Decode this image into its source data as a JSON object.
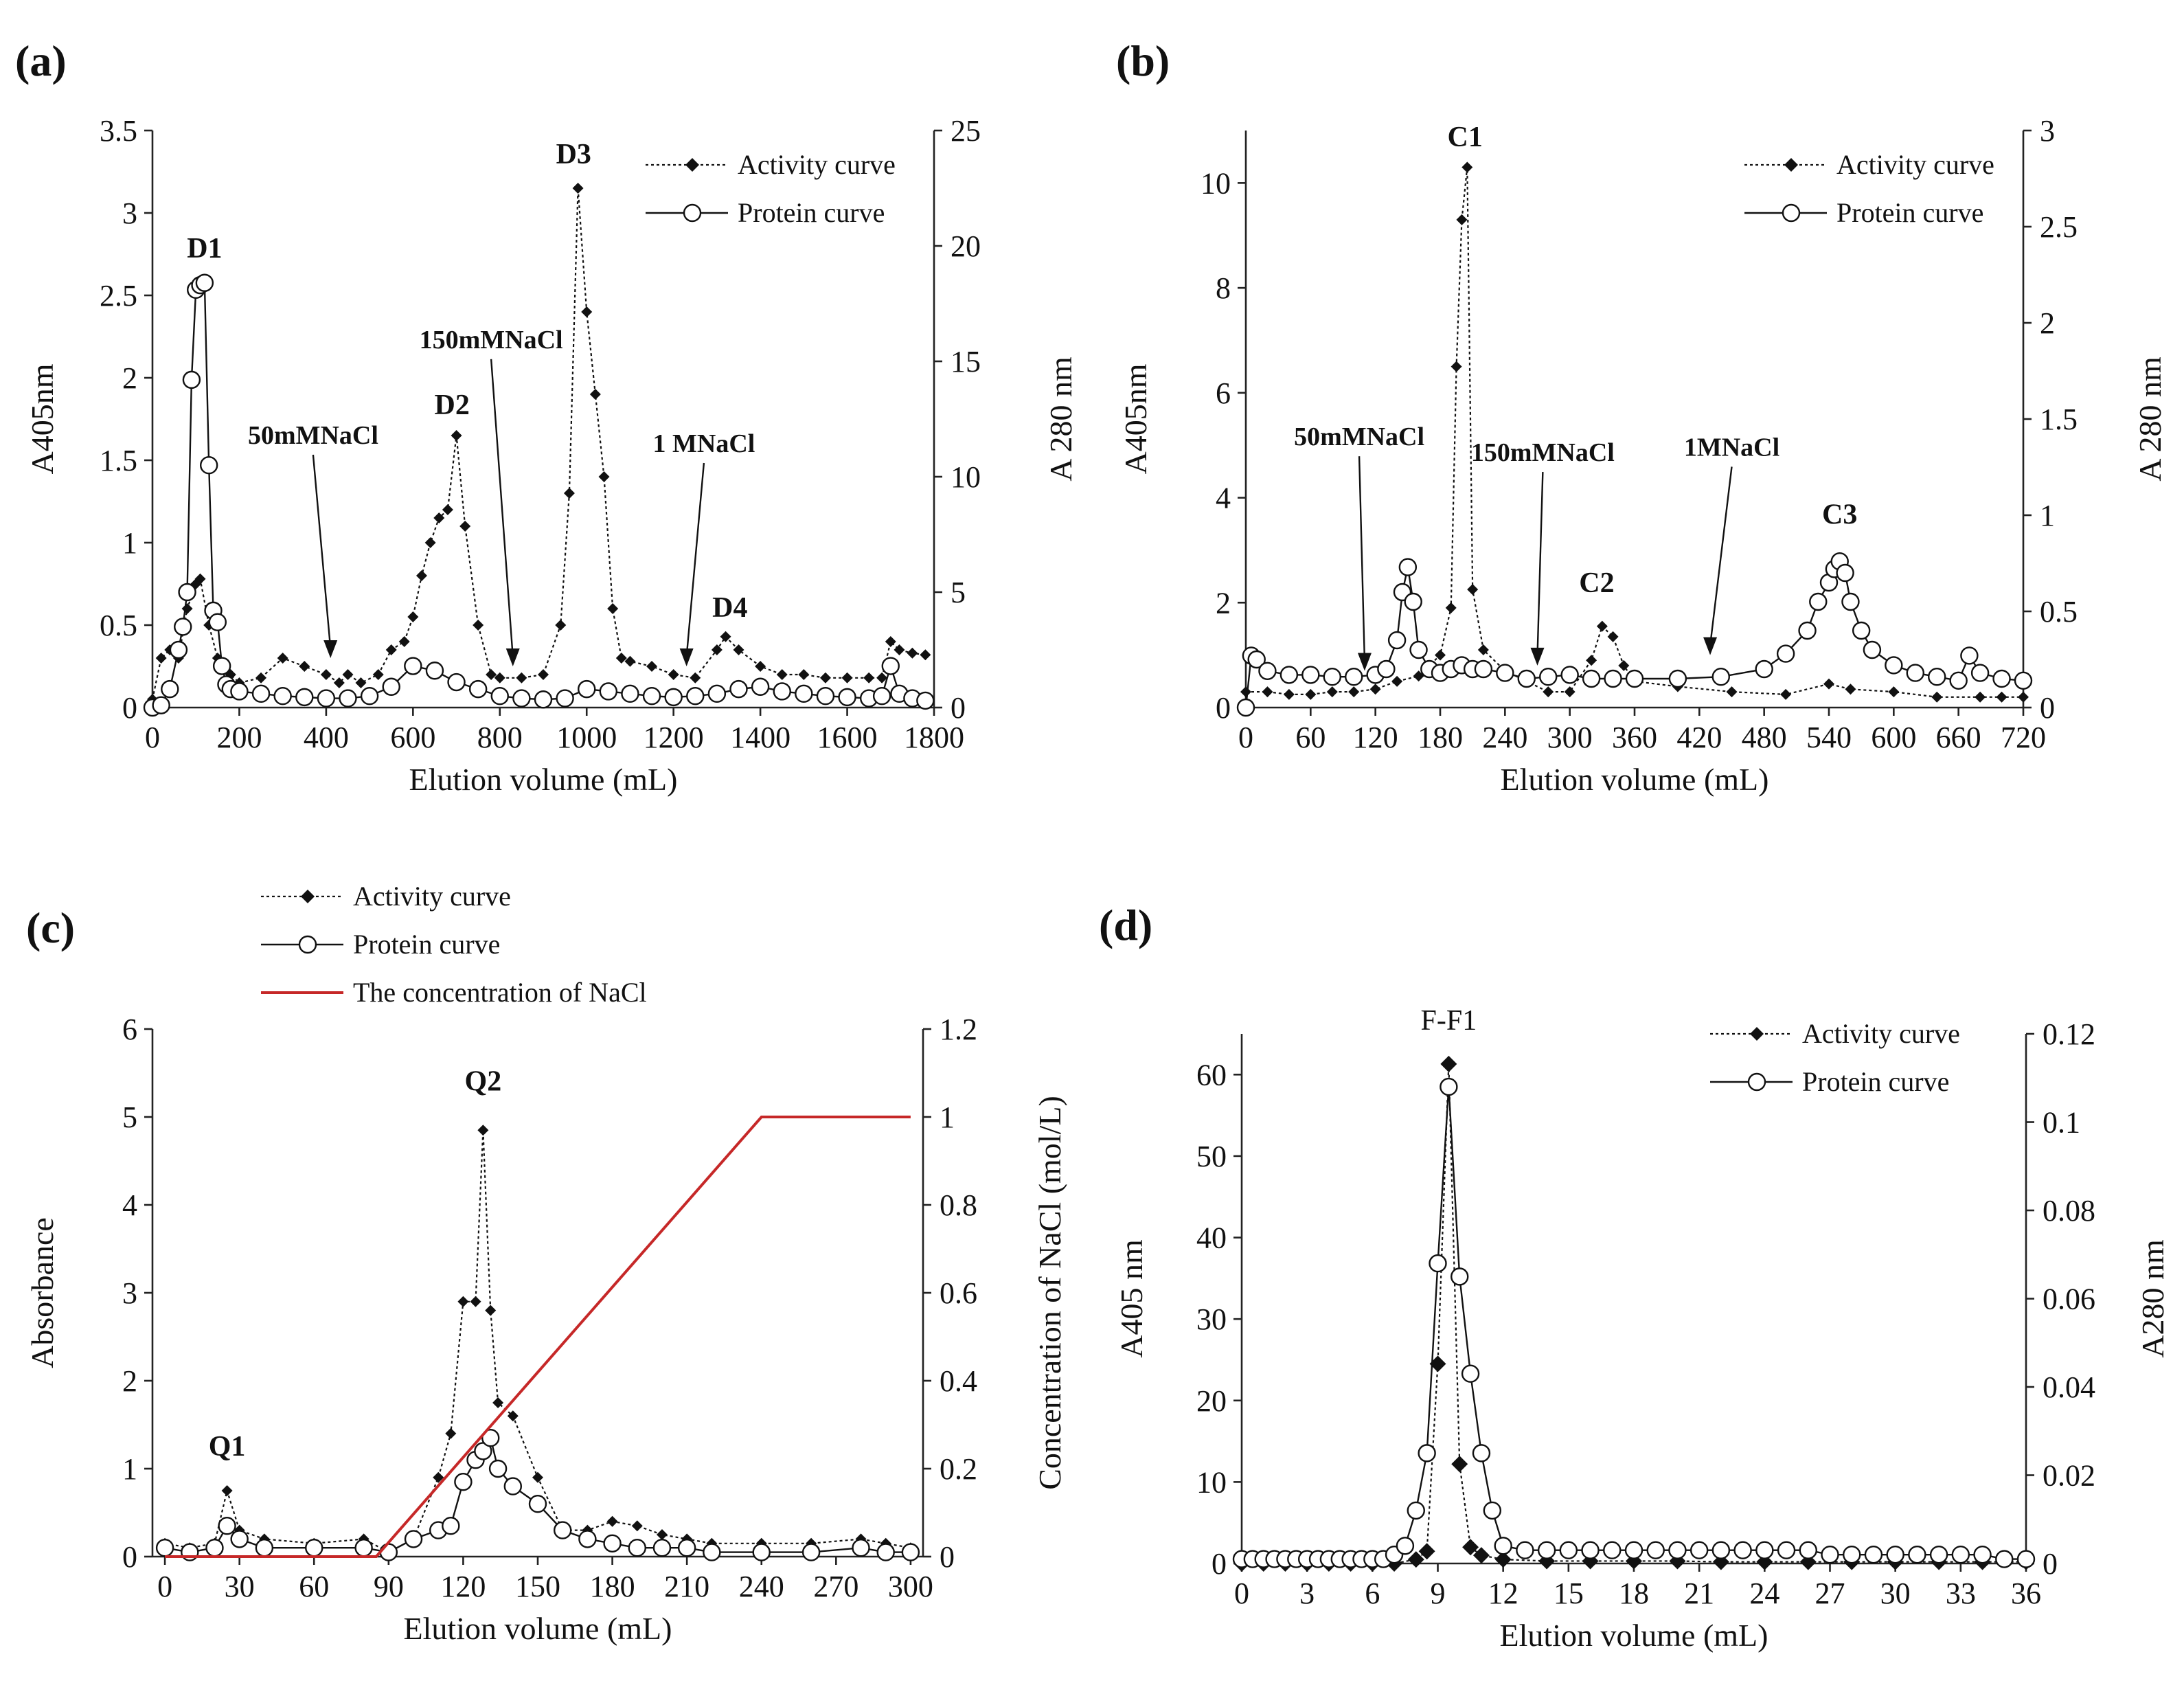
{
  "colors": {
    "activity": "#111111",
    "protein": "#111111",
    "nacl": "#c62828"
  },
  "chart_data": [
    {
      "panel_label": "(a)",
      "type": "line",
      "xlabel": "Elution volume (mL)",
      "ylabel": "A405nm",
      "y2label": "A 280 nm",
      "xlim": [
        0,
        1800
      ],
      "xticks": [
        0,
        200,
        400,
        600,
        800,
        1000,
        1200,
        1400,
        1600,
        1800
      ],
      "ylim": [
        0,
        3.5
      ],
      "yticks": [
        0,
        0.5,
        1,
        1.5,
        2,
        2.5,
        3,
        3.5
      ],
      "y2lim": [
        0,
        25
      ],
      "y2ticks": [
        0,
        5,
        10,
        15,
        20,
        25
      ],
      "legend": [
        "Activity curve",
        "Protein curve"
      ],
      "legend_position": "top-right",
      "series": [
        {
          "name": "Activity curve",
          "axis": "y",
          "marker": "diamond",
          "x": [
            0,
            20,
            40,
            60,
            80,
            100,
            110,
            130,
            150,
            180,
            200,
            250,
            300,
            350,
            400,
            430,
            450,
            480,
            520,
            550,
            580,
            600,
            620,
            640,
            660,
            680,
            700,
            720,
            750,
            780,
            800,
            850,
            900,
            940,
            960,
            980,
            1000,
            1020,
            1040,
            1060,
            1080,
            1100,
            1150,
            1200,
            1250,
            1300,
            1320,
            1350,
            1400,
            1450,
            1500,
            1550,
            1600,
            1650,
            1680,
            1700,
            1720,
            1750,
            1780
          ],
          "y": [
            0.05,
            0.3,
            0.35,
            0.3,
            0.6,
            0.75,
            0.78,
            0.5,
            0.3,
            0.2,
            0.15,
            0.18,
            0.3,
            0.25,
            0.2,
            0.15,
            0.2,
            0.15,
            0.2,
            0.35,
            0.4,
            0.55,
            0.8,
            1.0,
            1.15,
            1.2,
            1.65,
            1.1,
            0.5,
            0.2,
            0.18,
            0.18,
            0.2,
            0.5,
            1.3,
            3.15,
            2.4,
            1.9,
            1.4,
            0.6,
            0.3,
            0.28,
            0.25,
            0.2,
            0.18,
            0.35,
            0.43,
            0.35,
            0.25,
            0.2,
            0.2,
            0.18,
            0.18,
            0.18,
            0.18,
            0.4,
            0.35,
            0.33,
            0.32
          ]
        },
        {
          "name": "Protein curve",
          "axis": "y2",
          "marker": "circle",
          "x": [
            0,
            20,
            40,
            60,
            70,
            80,
            90,
            100,
            110,
            120,
            130,
            140,
            150,
            160,
            170,
            180,
            200,
            250,
            300,
            350,
            400,
            450,
            500,
            550,
            600,
            650,
            700,
            750,
            800,
            850,
            900,
            950,
            1000,
            1050,
            1100,
            1150,
            1200,
            1250,
            1300,
            1350,
            1400,
            1450,
            1500,
            1550,
            1600,
            1650,
            1680,
            1700,
            1720,
            1750,
            1780
          ],
          "y": [
            0,
            0.1,
            0.8,
            2.5,
            3.5,
            5.0,
            14.2,
            18.1,
            18.3,
            18.4,
            10.5,
            4.2,
            3.7,
            1.8,
            1.0,
            0.8,
            0.7,
            0.6,
            0.5,
            0.45,
            0.4,
            0.4,
            0.5,
            0.9,
            1.8,
            1.6,
            1.1,
            0.8,
            0.5,
            0.4,
            0.35,
            0.4,
            0.8,
            0.7,
            0.6,
            0.5,
            0.45,
            0.5,
            0.6,
            0.8,
            0.9,
            0.7,
            0.6,
            0.5,
            0.45,
            0.4,
            0.5,
            1.8,
            0.6,
            0.4,
            0.3
          ]
        }
      ],
      "annotations": [
        {
          "text": "D1",
          "x": 120,
          "y": 2.73
        },
        {
          "text": "D2",
          "x": 690,
          "y": 1.78
        },
        {
          "text": "D3",
          "x": 970,
          "y": 3.3
        },
        {
          "text": "D4",
          "x": 1330,
          "y": 0.55
        },
        {
          "text": "50mMNaCl",
          "x": 370,
          "y": 1.6,
          "arrow_to": [
            410,
            0.3
          ]
        },
        {
          "text": "150mMNaCl",
          "x": 780,
          "y": 2.18,
          "arrow_to": [
            830,
            0.25
          ]
        },
        {
          "text": "1 MNaCl",
          "x": 1270,
          "y": 1.55,
          "arrow_to": [
            1230,
            0.25
          ]
        }
      ]
    },
    {
      "panel_label": "(b)",
      "type": "line",
      "xlabel": "Elution volume (mL)",
      "ylabel": "A405nm",
      "y2label": "A 280 nm",
      "xlim": [
        0,
        720
      ],
      "xticks": [
        0,
        60,
        120,
        180,
        240,
        300,
        360,
        420,
        480,
        540,
        600,
        660,
        720
      ],
      "ylim": [
        0,
        11
      ],
      "yticks": [
        0,
        2,
        4,
        6,
        8,
        10
      ],
      "y2lim": [
        0,
        3
      ],
      "y2ticks": [
        0,
        0.5,
        1,
        1.5,
        2,
        2.5,
        3
      ],
      "legend": [
        "Activity curve",
        "Protein curve"
      ],
      "legend_position": "top-right",
      "series": [
        {
          "name": "Activity curve",
          "axis": "y",
          "marker": "diamond",
          "x": [
            0,
            20,
            40,
            60,
            80,
            100,
            120,
            140,
            160,
            180,
            190,
            195,
            200,
            205,
            210,
            220,
            240,
            260,
            280,
            300,
            320,
            330,
            340,
            350,
            360,
            400,
            450,
            500,
            540,
            560,
            600,
            640,
            680,
            700,
            720
          ],
          "y": [
            0.3,
            0.3,
            0.25,
            0.25,
            0.3,
            0.3,
            0.35,
            0.5,
            0.6,
            1.0,
            1.9,
            6.5,
            9.3,
            10.3,
            2.25,
            1.1,
            0.7,
            0.5,
            0.3,
            0.3,
            0.9,
            1.55,
            1.35,
            0.8,
            0.5,
            0.4,
            0.3,
            0.25,
            0.45,
            0.35,
            0.3,
            0.2,
            0.2,
            0.2,
            0.2
          ]
        },
        {
          "name": "Protein curve",
          "axis": "y2",
          "marker": "circle",
          "x": [
            0,
            5,
            10,
            20,
            40,
            60,
            80,
            100,
            120,
            130,
            140,
            145,
            150,
            155,
            160,
            170,
            180,
            190,
            200,
            210,
            220,
            240,
            260,
            280,
            300,
            320,
            340,
            360,
            400,
            440,
            480,
            500,
            520,
            530,
            540,
            545,
            550,
            555,
            560,
            570,
            580,
            600,
            620,
            640,
            660,
            670,
            680,
            700,
            720
          ],
          "y": [
            0,
            0.27,
            0.25,
            0.19,
            0.17,
            0.17,
            0.16,
            0.16,
            0.17,
            0.2,
            0.35,
            0.6,
            0.73,
            0.55,
            0.3,
            0.2,
            0.18,
            0.2,
            0.22,
            0.2,
            0.2,
            0.18,
            0.15,
            0.16,
            0.17,
            0.15,
            0.15,
            0.15,
            0.15,
            0.16,
            0.2,
            0.28,
            0.4,
            0.55,
            0.65,
            0.72,
            0.76,
            0.7,
            0.55,
            0.4,
            0.3,
            0.22,
            0.18,
            0.16,
            0.14,
            0.27,
            0.18,
            0.15,
            0.14
          ]
        }
      ],
      "annotations": [
        {
          "text": "C1",
          "x": 203,
          "y": 10.7
        },
        {
          "text": "C2",
          "x": 325,
          "y": 2.2
        },
        {
          "text": "C3",
          "x": 550,
          "y": 3.5
        },
        {
          "text": "50mMNaCl",
          "x": 105,
          "y": 5.0,
          "arrow_to": [
            110,
            0.7
          ]
        },
        {
          "text": "150mMNaCl",
          "x": 275,
          "y": 4.7,
          "arrow_to": [
            270,
            0.8
          ]
        },
        {
          "text": "1MNaCl",
          "x": 450,
          "y": 4.8,
          "arrow_to": [
            430,
            1.0
          ]
        }
      ]
    },
    {
      "panel_label": "(c)",
      "type": "line",
      "xlabel": "Elution volume (mL)",
      "ylabel": "Absorbance",
      "y2label": "Concentration of NaCl (mol/L)",
      "xlim": [
        -5,
        305
      ],
      "xticks": [
        0,
        30,
        60,
        90,
        120,
        150,
        180,
        210,
        240,
        270,
        300
      ],
      "ylim": [
        0,
        6
      ],
      "yticks": [
        0,
        1,
        2,
        3,
        4,
        5,
        6
      ],
      "y2lim": [
        0,
        1.2
      ],
      "y2ticks": [
        0,
        0.2,
        0.4,
        0.6,
        0.8,
        1,
        1.2
      ],
      "legend": [
        "Activity curve",
        "Protein curve",
        "The concentration of NaCl"
      ],
      "legend_position": "top-left",
      "series": [
        {
          "name": "Activity curve",
          "axis": "y",
          "marker": "diamond",
          "x": [
            0,
            10,
            20,
            25,
            30,
            40,
            60,
            80,
            90,
            100,
            110,
            115,
            120,
            125,
            128,
            131,
            134,
            140,
            150,
            160,
            170,
            180,
            190,
            200,
            210,
            220,
            240,
            260,
            280,
            290,
            300
          ],
          "y": [
            0.15,
            0.1,
            0.15,
            0.75,
            0.3,
            0.2,
            0.15,
            0.2,
            0.05,
            0.2,
            0.9,
            1.4,
            2.9,
            2.9,
            4.85,
            2.8,
            1.75,
            1.6,
            0.9,
            0.3,
            0.3,
            0.4,
            0.35,
            0.25,
            0.2,
            0.15,
            0.15,
            0.15,
            0.2,
            0.15,
            0.1
          ]
        },
        {
          "name": "Protein curve",
          "axis": "y",
          "marker": "circle",
          "x": [
            0,
            10,
            20,
            25,
            30,
            40,
            60,
            80,
            90,
            100,
            110,
            115,
            120,
            125,
            128,
            131,
            134,
            140,
            150,
            160,
            170,
            180,
            190,
            200,
            210,
            220,
            240,
            260,
            280,
            290,
            300
          ],
          "y": [
            0.1,
            0.05,
            0.1,
            0.35,
            0.2,
            0.1,
            0.1,
            0.1,
            0.05,
            0.2,
            0.3,
            0.35,
            0.85,
            1.1,
            1.2,
            1.35,
            1.0,
            0.8,
            0.6,
            0.3,
            0.2,
            0.15,
            0.1,
            0.1,
            0.1,
            0.05,
            0.05,
            0.05,
            0.1,
            0.05,
            0.05
          ]
        },
        {
          "name": "The concentration of NaCl",
          "axis": "y2",
          "marker": "none",
          "x": [
            0,
            85,
            240,
            300
          ],
          "y": [
            0,
            0,
            1,
            1
          ]
        }
      ],
      "annotations": [
        {
          "text": "Q1",
          "x": 25,
          "y": 1.15
        },
        {
          "text": "Q2",
          "x": 128,
          "y": 5.3
        }
      ]
    },
    {
      "panel_label": "(d)",
      "type": "line",
      "xlabel": "Elution volume (mL)",
      "ylabel": "A405 nm",
      "y2label": "A280 nm",
      "xlim": [
        0,
        36
      ],
      "xticks": [
        0,
        3,
        6,
        9,
        12,
        15,
        18,
        21,
        24,
        27,
        30,
        33,
        36
      ],
      "ylim": [
        0,
        65
      ],
      "yticks": [
        0,
        10,
        20,
        30,
        40,
        50,
        60
      ],
      "y2lim": [
        0,
        0.12
      ],
      "y2ticks": [
        0,
        0.02,
        0.04,
        0.06,
        0.08,
        0.1,
        0.12
      ],
      "legend": [
        "Activity curve",
        "Protein curve"
      ],
      "legend_position": "top-right",
      "series": [
        {
          "name": "Activity curve",
          "axis": "y",
          "marker": "diamond",
          "x": [
            0,
            1,
            2,
            3,
            4,
            5,
            6,
            7,
            8,
            8.5,
            9,
            9.5,
            10,
            10.5,
            11,
            12,
            14,
            16,
            18,
            20,
            22,
            24,
            26,
            28,
            30,
            32,
            34,
            36
          ],
          "y": [
            0,
            0,
            0,
            0,
            0,
            0,
            0,
            0,
            0.5,
            1.5,
            24.5,
            61.3,
            12.2,
            2.0,
            1.0,
            0.5,
            0.3,
            0.3,
            0.3,
            0.3,
            0.2,
            0.2,
            0.2,
            0.2,
            0.2,
            0.2,
            0.2,
            0.2
          ]
        },
        {
          "name": "Protein curve",
          "axis": "y2",
          "marker": "circle",
          "x": [
            0,
            0.5,
            1,
            1.5,
            2,
            2.5,
            3,
            3.5,
            4,
            4.5,
            5,
            5.5,
            6,
            6.5,
            7,
            7.5,
            8,
            8.5,
            9,
            9.5,
            10,
            10.5,
            11,
            11.5,
            12,
            13,
            14,
            15,
            16,
            17,
            18,
            19,
            20,
            21,
            22,
            23,
            24,
            25,
            26,
            27,
            28,
            29,
            30,
            31,
            32,
            33,
            34,
            35,
            36
          ],
          "y": [
            0.001,
            0.001,
            0.001,
            0.001,
            0.001,
            0.001,
            0.001,
            0.001,
            0.001,
            0.001,
            0.001,
            0.001,
            0.001,
            0.001,
            0.002,
            0.004,
            0.012,
            0.025,
            0.068,
            0.108,
            0.065,
            0.043,
            0.025,
            0.012,
            0.004,
            0.003,
            0.003,
            0.003,
            0.003,
            0.003,
            0.003,
            0.003,
            0.003,
            0.003,
            0.003,
            0.003,
            0.003,
            0.003,
            0.003,
            0.002,
            0.002,
            0.002,
            0.002,
            0.002,
            0.002,
            0.002,
            0.002,
            0.001,
            0.001
          ]
        }
      ],
      "annotations": [
        {
          "text": "F-F1",
          "x": 9.5,
          "y": 65.5
        }
      ]
    }
  ]
}
